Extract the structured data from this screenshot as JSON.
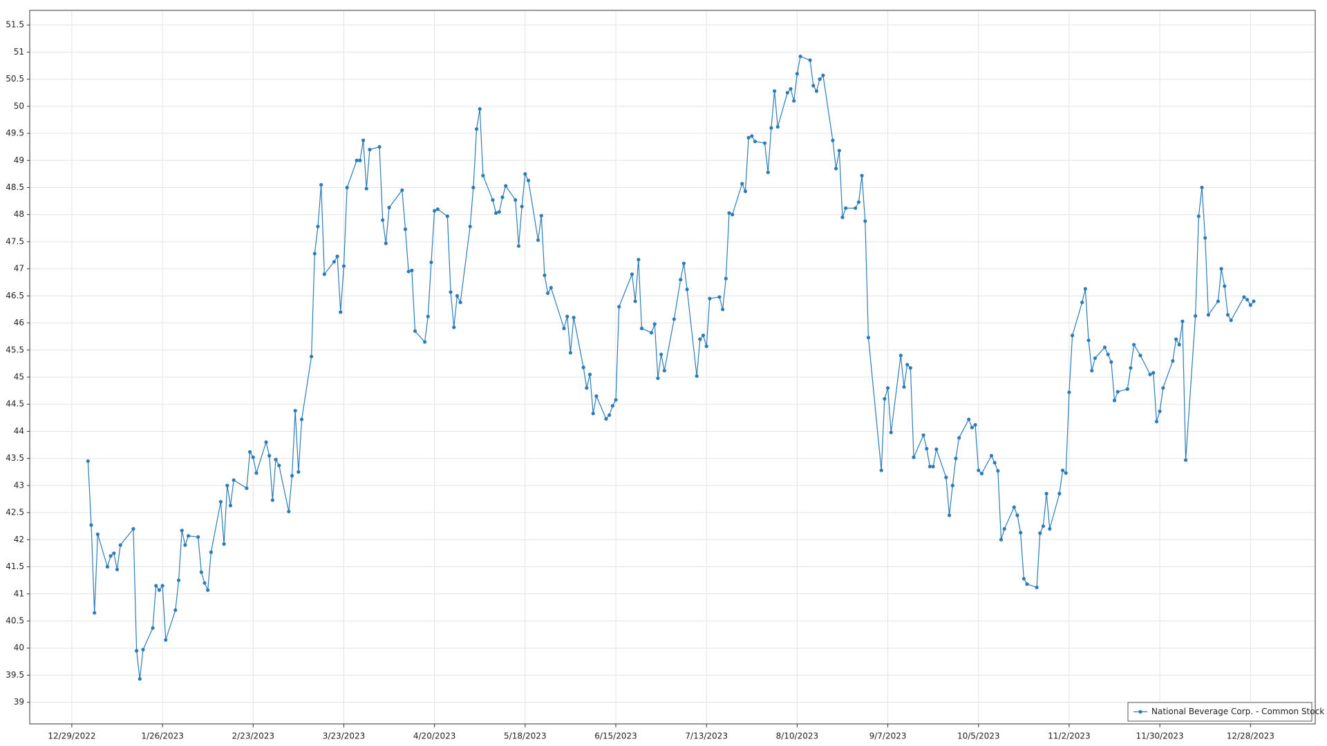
{
  "chart_data": {
    "type": "line",
    "x": [
      "1/3/2023",
      "1/4/2023",
      "1/5/2023",
      "1/6/2023",
      "1/9/2023",
      "1/10/2023",
      "1/11/2023",
      "1/12/2023",
      "1/13/2023",
      "1/17/2023",
      "1/18/2023",
      "1/19/2023",
      "1/20/2023",
      "1/23/2023",
      "1/24/2023",
      "1/25/2023",
      "1/26/2023",
      "1/27/2023",
      "1/30/2023",
      "1/31/2023",
      "2/1/2023",
      "2/2/2023",
      "2/3/2023",
      "2/6/2023",
      "2/7/2023",
      "2/8/2023",
      "2/9/2023",
      "2/10/2023",
      "2/13/2023",
      "2/14/2023",
      "2/15/2023",
      "2/16/2023",
      "2/17/2023",
      "2/21/2023",
      "2/22/2023",
      "2/23/2023",
      "2/24/2023",
      "2/27/2023",
      "2/28/2023",
      "3/1/2023",
      "3/2/2023",
      "3/3/2023",
      "3/6/2023",
      "3/7/2023",
      "3/8/2023",
      "3/9/2023",
      "3/10/2023",
      "3/13/2023",
      "3/14/2023",
      "3/15/2023",
      "3/16/2023",
      "3/17/2023",
      "3/20/2023",
      "3/21/2023",
      "3/22/2023",
      "3/23/2023",
      "3/24/2023",
      "3/27/2023",
      "3/28/2023",
      "3/29/2023",
      "3/30/2023",
      "3/31/2023",
      "4/3/2023",
      "4/4/2023",
      "4/5/2023",
      "4/6/2023",
      "4/10/2023",
      "4/11/2023",
      "4/12/2023",
      "4/13/2023",
      "4/14/2023",
      "4/17/2023",
      "4/18/2023",
      "4/19/2023",
      "4/20/2023",
      "4/21/2023",
      "4/24/2023",
      "4/25/2023",
      "4/26/2023",
      "4/27/2023",
      "4/28/2023",
      "5/1/2023",
      "5/2/2023",
      "5/3/2023",
      "5/4/2023",
      "5/5/2023",
      "5/8/2023",
      "5/9/2023",
      "5/10/2023",
      "5/11/2023",
      "5/12/2023",
      "5/15/2023",
      "5/16/2023",
      "5/17/2023",
      "5/18/2023",
      "5/19/2023",
      "5/22/2023",
      "5/23/2023",
      "5/24/2023",
      "5/25/2023",
      "5/26/2023",
      "5/30/2023",
      "5/31/2023",
      "6/1/2023",
      "6/2/2023",
      "6/5/2023",
      "6/6/2023",
      "6/7/2023",
      "6/8/2023",
      "6/9/2023",
      "6/12/2023",
      "6/13/2023",
      "6/14/2023",
      "6/15/2023",
      "6/16/2023",
      "6/20/2023",
      "6/21/2023",
      "6/22/2023",
      "6/23/2023",
      "6/26/2023",
      "6/27/2023",
      "6/28/2023",
      "6/29/2023",
      "6/30/2023",
      "7/3/2023",
      "7/5/2023",
      "7/6/2023",
      "7/7/2023",
      "7/10/2023",
      "7/11/2023",
      "7/12/2023",
      "7/13/2023",
      "7/14/2023",
      "7/17/2023",
      "7/18/2023",
      "7/19/2023",
      "7/20/2023",
      "7/21/2023",
      "7/24/2023",
      "7/25/2023",
      "7/26/2023",
      "7/27/2023",
      "7/28/2023",
      "7/31/2023",
      "8/1/2023",
      "8/2/2023",
      "8/3/2023",
      "8/4/2023",
      "8/7/2023",
      "8/8/2023",
      "8/9/2023",
      "8/10/2023",
      "8/11/2023",
      "8/14/2023",
      "8/15/2023",
      "8/16/2023",
      "8/17/2023",
      "8/18/2023",
      "8/21/2023",
      "8/22/2023",
      "8/23/2023",
      "8/24/2023",
      "8/25/2023",
      "8/28/2023",
      "8/29/2023",
      "8/30/2023",
      "8/31/2023",
      "9/1/2023",
      "9/5/2023",
      "9/6/2023",
      "9/7/2023",
      "9/8/2023",
      "9/11/2023",
      "9/12/2023",
      "9/13/2023",
      "9/14/2023",
      "9/15/2023",
      "9/18/2023",
      "9/19/2023",
      "9/20/2023",
      "9/21/2023",
      "9/22/2023",
      "9/25/2023",
      "9/26/2023",
      "9/27/2023",
      "9/28/2023",
      "9/29/2023",
      "10/2/2023",
      "10/3/2023",
      "10/4/2023",
      "10/5/2023",
      "10/6/2023",
      "10/9/2023",
      "10/10/2023",
      "10/11/2023",
      "10/12/2023",
      "10/13/2023",
      "10/16/2023",
      "10/17/2023",
      "10/18/2023",
      "10/19/2023",
      "10/20/2023",
      "10/23/2023",
      "10/24/2023",
      "10/25/2023",
      "10/26/2023",
      "10/27/2023",
      "10/30/2023",
      "10/31/2023",
      "11/1/2023",
      "11/2/2023",
      "11/3/2023",
      "11/6/2023",
      "11/7/2023",
      "11/8/2023",
      "11/9/2023",
      "11/10/2023",
      "11/13/2023",
      "11/14/2023",
      "11/15/2023",
      "11/16/2023",
      "11/17/2023",
      "11/20/2023",
      "11/21/2023",
      "11/22/2023",
      "11/24/2023",
      "11/27/2023",
      "11/28/2023",
      "11/29/2023",
      "11/30/2023",
      "12/1/2023",
      "12/4/2023",
      "12/5/2023",
      "12/6/2023",
      "12/7/2023",
      "12/8/2023",
      "12/11/2023",
      "12/12/2023",
      "12/13/2023",
      "12/14/2023",
      "12/15/2023",
      "12/18/2023",
      "12/19/2023",
      "12/20/2023",
      "12/21/2023",
      "12/22/2023",
      "12/26/2023",
      "12/27/2023",
      "12/28/2023",
      "12/29/2023"
    ],
    "series": [
      {
        "name": "National Beverage Corp. - Common Stock",
        "color": "#2b7bb9",
        "values": [
          43.45,
          42.27,
          40.65,
          42.1,
          41.5,
          41.7,
          41.75,
          41.45,
          41.9,
          42.2,
          39.95,
          39.43,
          39.97,
          40.37,
          41.15,
          41.07,
          41.15,
          40.15,
          40.7,
          41.25,
          42.17,
          41.9,
          42.07,
          42.05,
          41.4,
          41.2,
          41.07,
          41.77,
          42.7,
          41.92,
          43.0,
          42.63,
          43.1,
          42.95,
          43.62,
          43.52,
          43.23,
          43.8,
          43.55,
          42.73,
          43.48,
          43.37,
          42.52,
          43.18,
          44.38,
          43.25,
          44.22,
          45.38,
          47.28,
          47.78,
          48.55,
          46.9,
          47.13,
          47.23,
          46.2,
          47.05,
          48.5,
          49.0,
          49.0,
          49.37,
          48.48,
          49.2,
          49.25,
          47.9,
          47.47,
          48.13,
          48.45,
          47.73,
          46.95,
          46.97,
          45.85,
          45.65,
          46.12,
          47.12,
          48.07,
          48.1,
          47.97,
          46.57,
          45.92,
          46.5,
          46.38,
          47.78,
          48.5,
          49.58,
          49.95,
          48.72,
          48.27,
          48.03,
          48.05,
          48.32,
          48.53,
          48.27,
          47.42,
          48.15,
          48.75,
          48.63,
          47.53,
          47.98,
          46.88,
          46.55,
          46.65,
          45.9,
          46.12,
          45.45,
          46.1,
          45.18,
          44.8,
          45.05,
          44.33,
          44.65,
          44.23,
          44.3,
          44.47,
          44.58,
          46.3,
          46.9,
          46.4,
          47.17,
          45.9,
          45.82,
          45.98,
          44.98,
          45.42,
          45.12,
          46.07,
          46.8,
          47.1,
          46.62,
          45.02,
          45.7,
          45.77,
          45.57,
          46.45,
          46.48,
          46.25,
          46.82,
          48.03,
          48.0,
          48.57,
          48.43,
          49.42,
          49.45,
          49.35,
          49.32,
          48.78,
          49.6,
          50.28,
          49.62,
          50.25,
          50.32,
          50.1,
          50.6,
          50.92,
          50.85,
          50.38,
          50.28,
          50.5,
          50.57,
          49.37,
          48.85,
          49.18,
          47.95,
          48.12,
          48.12,
          48.23,
          48.72,
          47.88,
          45.73,
          43.28,
          44.6,
          44.8,
          43.98,
          45.4,
          44.82,
          45.23,
          45.17,
          43.52,
          43.93,
          43.68,
          43.35,
          43.35,
          43.67,
          43.15,
          42.45,
          43.0,
          43.5,
          43.88,
          44.22,
          44.07,
          44.12,
          43.28,
          43.22,
          43.55,
          43.42,
          43.27,
          42.0,
          42.2,
          42.6,
          42.45,
          42.13,
          41.28,
          41.18,
          41.12,
          42.12,
          42.25,
          42.85,
          42.2,
          42.85,
          43.28,
          43.23,
          44.72,
          45.77,
          46.38,
          46.63,
          45.68,
          45.12,
          45.35,
          45.55,
          45.42,
          45.28,
          44.57,
          44.73,
          44.78,
          45.17,
          45.6,
          45.4,
          45.05,
          45.08,
          44.18,
          44.37,
          44.8,
          45.3,
          45.7,
          45.6,
          46.03,
          43.47,
          46.13,
          47.97,
          48.5,
          47.57,
          46.15,
          46.4,
          47.0,
          46.68,
          46.15,
          46.05,
          46.48,
          46.43,
          46.33,
          46.4
        ]
      }
    ],
    "xlim": [
      "12/16/2022",
      "1/17/2024"
    ],
    "xticks": [
      "12/29/2022",
      "1/26/2023",
      "2/23/2023",
      "3/23/2023",
      "4/20/2023",
      "5/18/2023",
      "6/15/2023",
      "7/13/2023",
      "8/10/2023",
      "9/7/2023",
      "10/5/2023",
      "11/2/2023",
      "11/30/2023",
      "12/28/2023"
    ],
    "ylim": [
      38.6,
      51.77
    ],
    "yticks": [
      39,
      39.5,
      40,
      40.5,
      41,
      41.5,
      42,
      42.5,
      43,
      43.5,
      44,
      44.5,
      45,
      45.5,
      46,
      46.5,
      47,
      47.5,
      48,
      48.5,
      49,
      49.5,
      50,
      50.5,
      51,
      51.5
    ],
    "grid": true,
    "legend": "bottom-right",
    "markers": true
  }
}
